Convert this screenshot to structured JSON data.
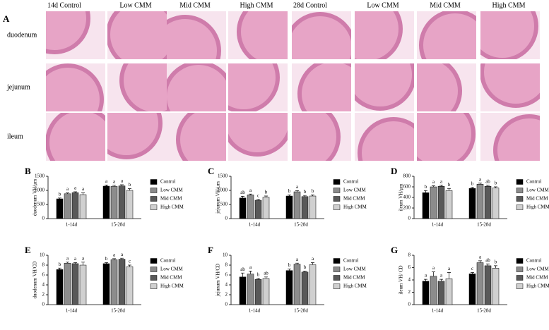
{
  "panel_a": {
    "label": "A",
    "columns": [
      "14d  Control",
      "Low CMM",
      "Mid CMM",
      "High CMM",
      "28d  Control",
      "Low CMM",
      "Mid CMM",
      "High CMM"
    ],
    "rows": [
      "duodenum",
      "jejunum",
      "ileum"
    ]
  },
  "chart_data": [
    {
      "type": "bar",
      "panel": "B",
      "ylabel": "duodenum VH/μm",
      "categories": [
        "1-14d",
        "15-28d"
      ],
      "ylim": [
        0,
        1500
      ],
      "yticks": [
        0,
        500,
        1000,
        1500
      ],
      "series": [
        {
          "name": "Control",
          "color": "#000000",
          "values": [
            700,
            1150
          ],
          "errors": [
            30,
            40
          ],
          "letters": [
            "b",
            "a"
          ]
        },
        {
          "name": "Low CMM",
          "color": "#8c8c8c",
          "values": [
            880,
            1140
          ],
          "errors": [
            30,
            40
          ],
          "letters": [
            "a",
            "a"
          ]
        },
        {
          "name": "Mid CMM",
          "color": "#595959",
          "values": [
            920,
            1160
          ],
          "errors": [
            30,
            40
          ],
          "letters": [
            "a",
            "a"
          ]
        },
        {
          "name": "High CMM",
          "color": "#d0d0d0",
          "values": [
            850,
            1000
          ],
          "errors": [
            60,
            60
          ],
          "letters": [
            "a",
            "b"
          ]
        }
      ]
    },
    {
      "type": "bar",
      "panel": "C",
      "ylabel": "jejunum VH/μm",
      "categories": [
        "1-14d",
        "15-28d"
      ],
      "ylim": [
        0,
        1500
      ],
      "yticks": [
        0,
        500,
        1000,
        1500
      ],
      "series": [
        {
          "name": "Control",
          "color": "#000000",
          "values": [
            730,
            800
          ],
          "errors": [
            60,
            40
          ],
          "letters": [
            "ab",
            "b"
          ]
        },
        {
          "name": "Low CMM",
          "color": "#8c8c8c",
          "values": [
            840,
            950
          ],
          "errors": [
            30,
            40
          ],
          "letters": [
            "a",
            "a"
          ]
        },
        {
          "name": "Mid CMM",
          "color": "#595959",
          "values": [
            650,
            780
          ],
          "errors": [
            30,
            40
          ],
          "letters": [
            "c",
            "b"
          ]
        },
        {
          "name": "High CMM",
          "color": "#d0d0d0",
          "values": [
            760,
            800
          ],
          "errors": [
            40,
            40
          ],
          "letters": [
            "b",
            "b"
          ]
        }
      ]
    },
    {
      "type": "bar",
      "panel": "D",
      "ylabel": "ileum VH/μm",
      "categories": [
        "1-14d",
        "15-28d"
      ],
      "ylim": [
        0,
        800
      ],
      "yticks": [
        0,
        200,
        400,
        600,
        800
      ],
      "series": [
        {
          "name": "Control",
          "color": "#000000",
          "values": [
            490,
            570
          ],
          "errors": [
            40,
            20
          ],
          "letters": [
            "b",
            "b"
          ]
        },
        {
          "name": "Low CMM",
          "color": "#8c8c8c",
          "values": [
            600,
            650
          ],
          "errors": [
            20,
            20
          ],
          "letters": [
            "a",
            "a"
          ]
        },
        {
          "name": "Mid CMM",
          "color": "#595959",
          "values": [
            610,
            610
          ],
          "errors": [
            20,
            20
          ],
          "letters": [
            "a",
            "ab"
          ]
        },
        {
          "name": "High CMM",
          "color": "#d0d0d0",
          "values": [
            530,
            580
          ],
          "errors": [
            40,
            20
          ],
          "letters": [
            "b",
            "b"
          ]
        }
      ]
    },
    {
      "type": "bar",
      "panel": "E",
      "ylabel": "duodenum VH/CD",
      "categories": [
        "1-14d",
        "15-28d"
      ],
      "ylim": [
        0,
        10
      ],
      "yticks": [
        0,
        2,
        4,
        6,
        8,
        10
      ],
      "series": [
        {
          "name": "Control",
          "color": "#000000",
          "values": [
            7.1,
            8.3
          ],
          "errors": [
            0.3,
            0.2
          ],
          "letters": [
            "b",
            "b"
          ]
        },
        {
          "name": "Low CMM",
          "color": "#8c8c8c",
          "values": [
            8.4,
            9.1
          ],
          "errors": [
            0.2,
            0.2
          ],
          "letters": [
            "a",
            "a"
          ]
        },
        {
          "name": "Mid CMM",
          "color": "#595959",
          "values": [
            8.3,
            9.2
          ],
          "errors": [
            0.2,
            0.2
          ],
          "letters": [
            "a",
            "a"
          ]
        },
        {
          "name": "High CMM",
          "color": "#d0d0d0",
          "values": [
            8.0,
            7.7
          ],
          "errors": [
            0.6,
            0.3
          ],
          "letters": [
            "a",
            "c"
          ]
        }
      ]
    },
    {
      "type": "bar",
      "panel": "F",
      "ylabel": "jejunum VH/CD",
      "categories": [
        "1-14d",
        "15-28d"
      ],
      "ylim": [
        0,
        10
      ],
      "yticks": [
        0,
        2,
        4,
        6,
        8,
        10
      ],
      "series": [
        {
          "name": "Control",
          "color": "#000000",
          "values": [
            5.6,
            6.9
          ],
          "errors": [
            0.8,
            0.3
          ],
          "letters": [
            "ab",
            "b"
          ]
        },
        {
          "name": "Low CMM",
          "color": "#8c8c8c",
          "values": [
            6.2,
            8.2
          ],
          "errors": [
            0.6,
            0.2
          ],
          "letters": [
            "a",
            "a"
          ]
        },
        {
          "name": "Mid CMM",
          "color": "#595959",
          "values": [
            5.1,
            6.6
          ],
          "errors": [
            0.2,
            0.2
          ],
          "letters": [
            "b",
            "b"
          ]
        },
        {
          "name": "High CMM",
          "color": "#d0d0d0",
          "values": [
            5.3,
            8.1
          ],
          "errors": [
            0.3,
            0.4
          ],
          "letters": [
            "ab",
            "a"
          ]
        }
      ]
    },
    {
      "type": "bar",
      "panel": "G",
      "ylabel": "ileum VH/ CD",
      "categories": [
        "1-14d",
        "15-28d"
      ],
      "ylim": [
        0,
        8
      ],
      "yticks": [
        0,
        2,
        4,
        6,
        8
      ],
      "series": [
        {
          "name": "Control",
          "color": "#000000",
          "values": [
            3.8,
            5.0
          ],
          "errors": [
            0.3,
            0.2
          ],
          "letters": [
            "a",
            "c"
          ]
        },
        {
          "name": "Low CMM",
          "color": "#8c8c8c",
          "values": [
            4.6,
            6.8
          ],
          "errors": [
            0.7,
            0.3
          ],
          "letters": [
            "a",
            "a"
          ]
        },
        {
          "name": "Mid CMM",
          "color": "#595959",
          "values": [
            3.8,
            6.3
          ],
          "errors": [
            0.3,
            0.3
          ],
          "letters": [
            "a",
            "ab"
          ]
        },
        {
          "name": "High CMM",
          "color": "#d0d0d0",
          "values": [
            4.2,
            5.9
          ],
          "errors": [
            1.0,
            0.4
          ],
          "letters": [
            "a",
            "b"
          ]
        }
      ]
    }
  ]
}
